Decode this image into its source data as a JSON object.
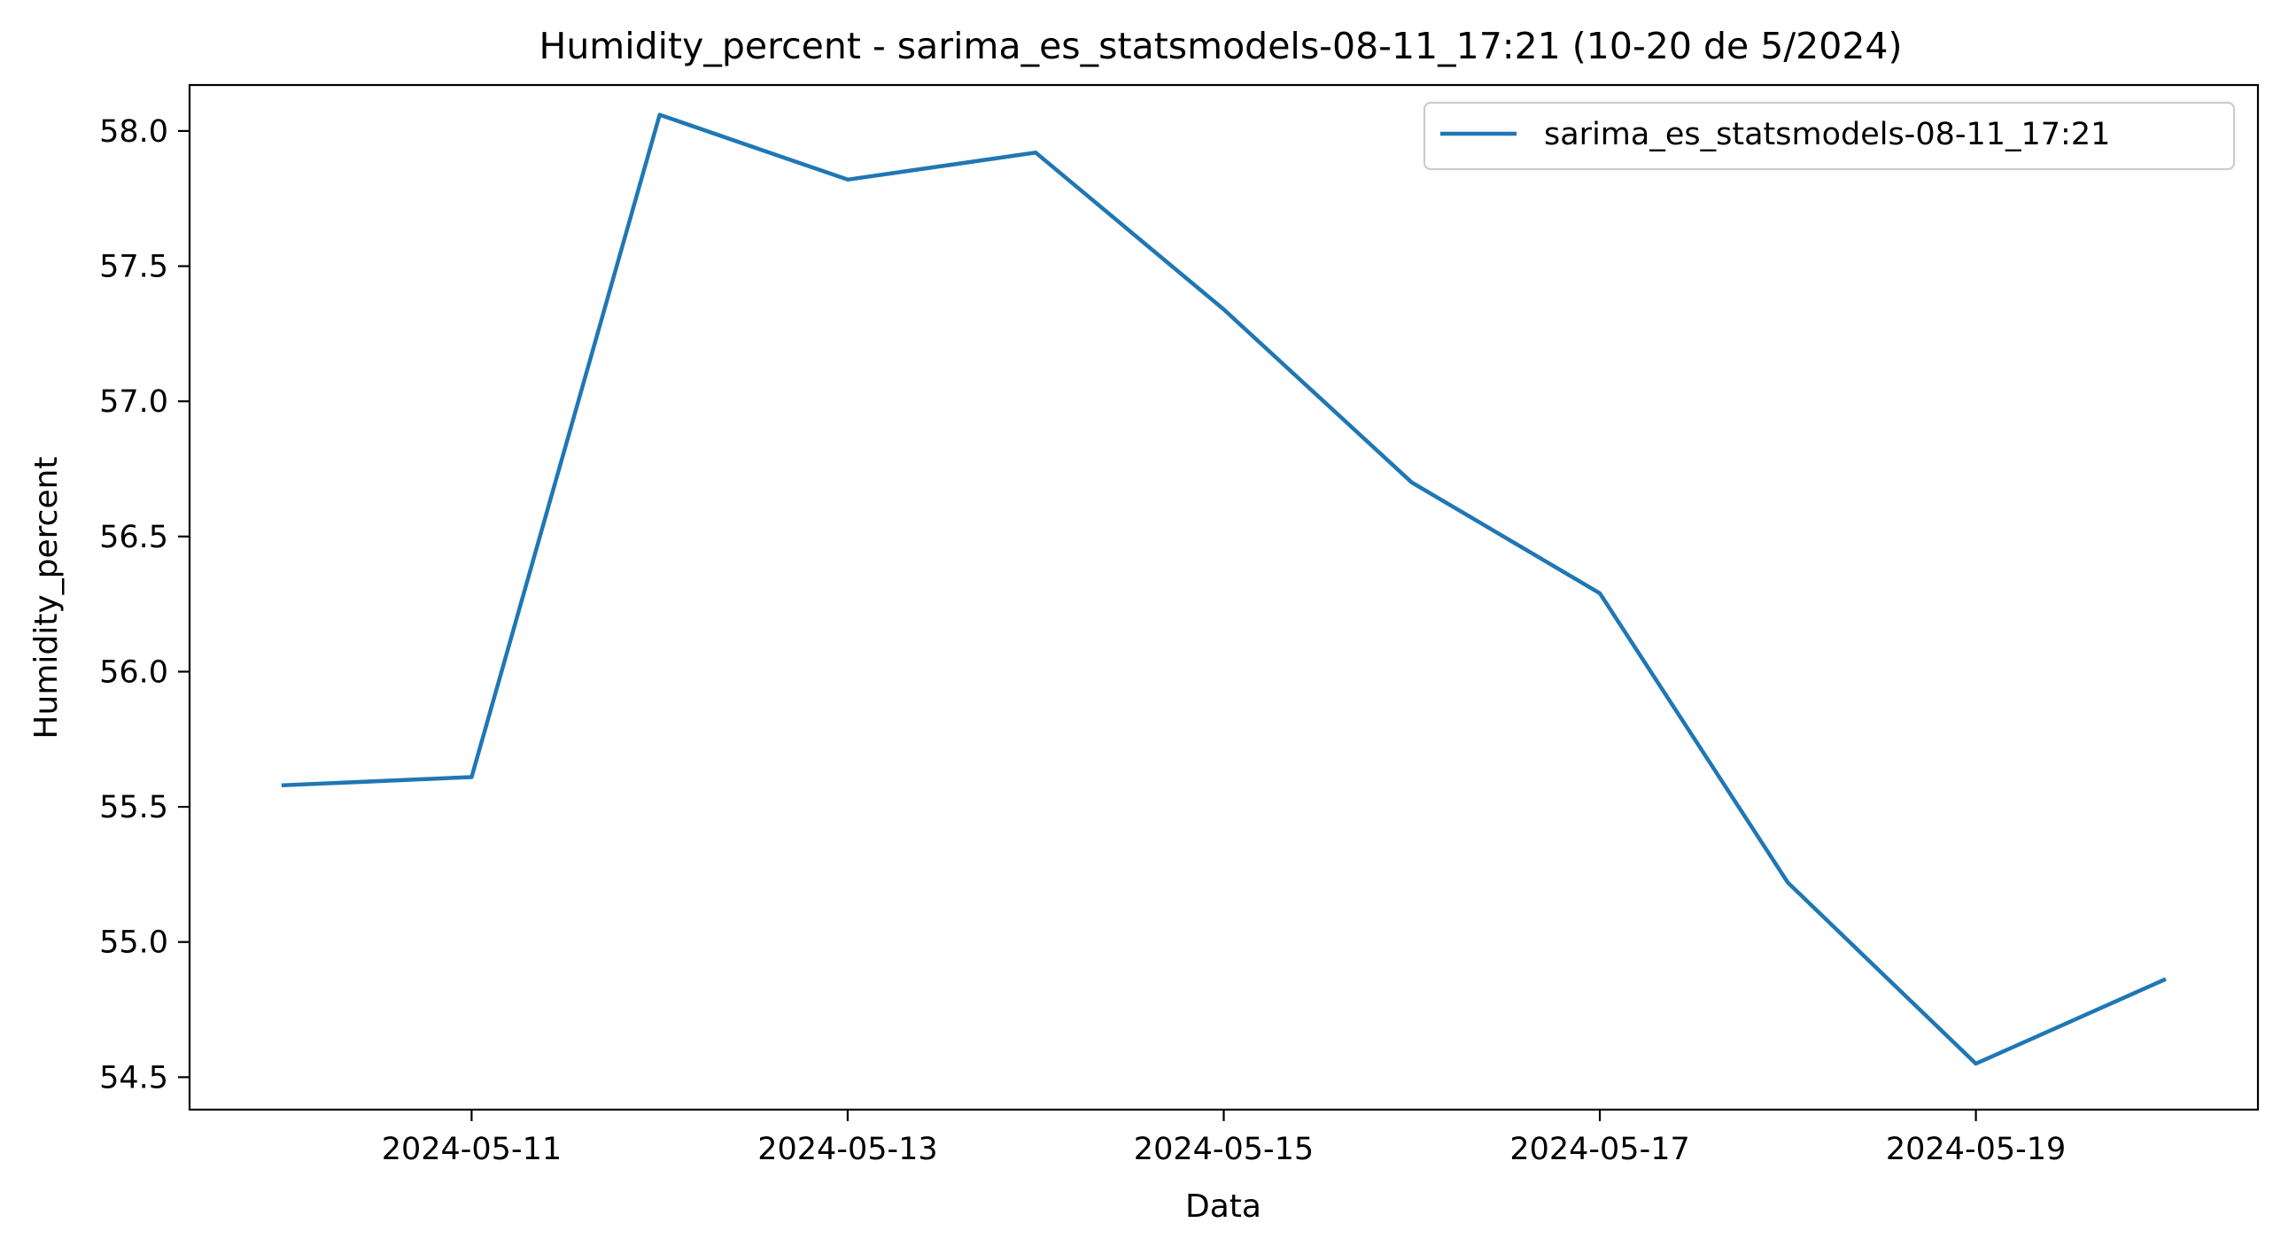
{
  "chart_data": {
    "type": "line",
    "title": "Humidity_percent - sarima_es_statsmodels-08-11_17:21 (10-20 de 5/2024)",
    "xlabel": "Data",
    "ylabel": "Humidity_percent",
    "x": [
      "2024-05-10",
      "2024-05-11",
      "2024-05-12",
      "2024-05-13",
      "2024-05-14",
      "2024-05-15",
      "2024-05-16",
      "2024-05-17",
      "2024-05-18",
      "2024-05-19",
      "2024-05-20"
    ],
    "series": [
      {
        "name": "sarima_es_statsmodels-08-11_17:21",
        "color": "#1f77b4",
        "values": [
          55.58,
          55.61,
          58.06,
          57.82,
          57.92,
          57.34,
          56.7,
          56.29,
          55.22,
          54.55,
          54.86
        ]
      }
    ],
    "xticks": [
      "2024-05-11",
      "2024-05-13",
      "2024-05-15",
      "2024-05-17",
      "2024-05-19"
    ],
    "yticks": [
      54.5,
      55.0,
      55.5,
      56.0,
      56.5,
      57.0,
      57.5,
      58.0
    ],
    "ytick_labels": [
      "54.5",
      "55.0",
      "55.5",
      "56.0",
      "56.5",
      "57.0",
      "57.5",
      "58.0"
    ],
    "ylim": [
      54.38,
      58.17
    ],
    "xlim": [
      "2024-05-09T12:00",
      "2024-05-20T12:00"
    ],
    "grid": false,
    "legend_position": "top-right"
  }
}
